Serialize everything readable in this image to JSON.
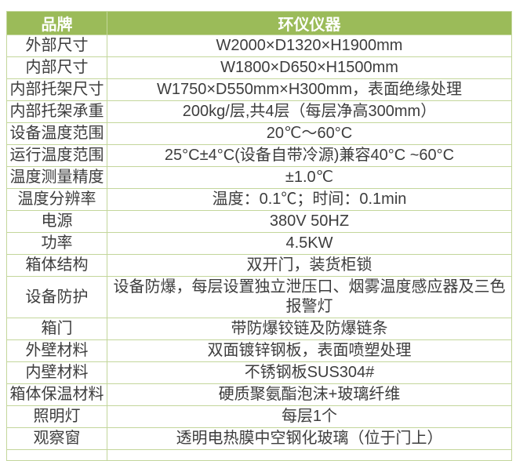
{
  "colors": {
    "header_bg": "#9bbb59",
    "header_text": "#ffffff",
    "border": "#c3d69b",
    "body_text": "#3d3d3d",
    "page_bg": "#ffffff"
  },
  "table": {
    "header": {
      "brand_label": "品牌",
      "brand_value": "环仪仪器"
    },
    "rows": [
      {
        "label": "外部尺寸",
        "value": "W2000×D1320×H1900mm"
      },
      {
        "label": "内部尺寸",
        "value": "W1800×D650×H1500mm"
      },
      {
        "label": "内部托架尺寸",
        "value": "W1750×D550mm×H300mm，表面绝缘处理"
      },
      {
        "label": "内部托架承重",
        "value": "200kg/层,共4层（每层净高300mm）"
      },
      {
        "label": "设备温度范围",
        "value": "20℃～60°C"
      },
      {
        "label": "运行温度范围",
        "value": "25°C±4°C(设备自带冷源)兼容40°C ~60°C"
      },
      {
        "label": "温度测量精度",
        "value": "±1.0℃"
      },
      {
        "label": "温度分辨率",
        "value": "温度：0.1℃；时间：0.1min"
      },
      {
        "label": "电源",
        "value": "380V 50HZ"
      },
      {
        "label": "功率",
        "value": "4.5KW"
      },
      {
        "label": "箱体结构",
        "value": "双开门，装货柜锁"
      },
      {
        "label": "设备防护",
        "value": "设备防爆，每层设置独立泄压口、烟雾温度感应器及三色报警灯"
      },
      {
        "label": "箱门",
        "value": "带防爆铰链及防爆链条"
      },
      {
        "label": "外壁材料",
        "value": "双面镀锌钢板，表面喷塑处理"
      },
      {
        "label": "内壁材料",
        "value": "不锈钢板SUS304#"
      },
      {
        "label": "箱体保温材料",
        "value": "硬质聚氨酯泡沫+玻璃纤维"
      },
      {
        "label": "照明灯",
        "value": "每层1个"
      },
      {
        "label": "观察窗",
        "value": "透明电热膜中空钢化玻璃（位于门上）"
      }
    ]
  }
}
